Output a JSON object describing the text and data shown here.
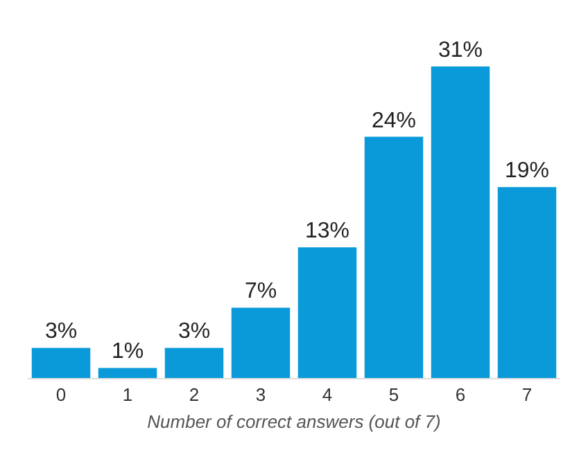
{
  "chart_data": {
    "type": "bar",
    "xlabel": "Number of correct answers (out of 7)",
    "categories": [
      "0",
      "1",
      "2",
      "3",
      "4",
      "5",
      "6",
      "7"
    ],
    "values": [
      3,
      1,
      3,
      7,
      13,
      24,
      31,
      19
    ],
    "value_labels": [
      "3%",
      "1%",
      "3%",
      "7%",
      "13%",
      "24%",
      "31%",
      "19%"
    ],
    "color": "#0a9ad9"
  }
}
